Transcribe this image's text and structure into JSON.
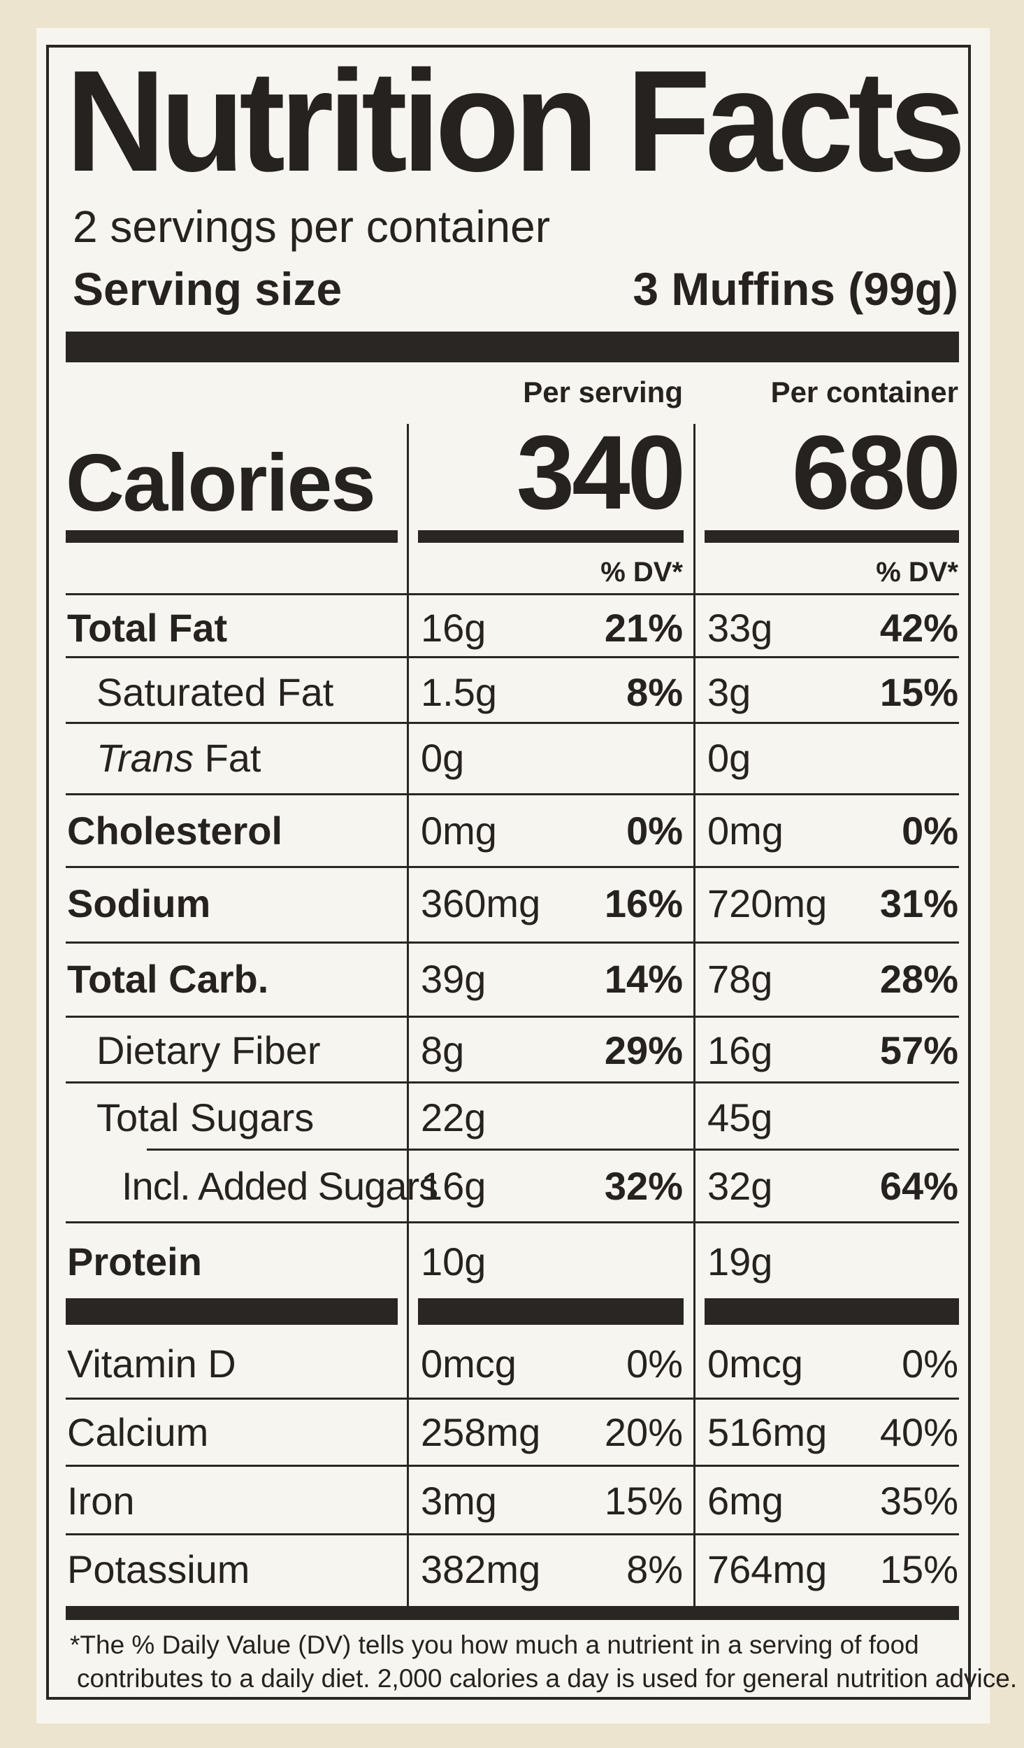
{
  "title": "Nutrition Facts",
  "servings_per_container": "2 servings per container",
  "serving_size_label": "Serving size",
  "serving_size_value": "3 Muffins (99g)",
  "columns": {
    "per_serving": "Per serving",
    "per_container": "Per container"
  },
  "calories": {
    "label": "Calories",
    "per_serving": "340",
    "per_container": "680"
  },
  "dv_header": "% DV*",
  "nutrients": [
    {
      "label": "Total Fat",
      "serving_amount": "16g",
      "serving_dv": "21%",
      "container_amount": "33g",
      "container_dv": "42%"
    },
    {
      "label": "Saturated Fat",
      "serving_amount": "1.5g",
      "serving_dv": "8%",
      "container_amount": "3g",
      "container_dv": "15%"
    },
    {
      "label_italic": "Trans",
      "label": "Fat",
      "serving_amount": "0g",
      "serving_dv": "",
      "container_amount": "0g",
      "container_dv": ""
    },
    {
      "label": "Cholesterol",
      "serving_amount": "0mg",
      "serving_dv": "0%",
      "container_amount": "0mg",
      "container_dv": "0%"
    },
    {
      "label": "Sodium",
      "serving_amount": "360mg",
      "serving_dv": "16%",
      "container_amount": "720mg",
      "container_dv": "31%"
    },
    {
      "label": "Total Carb.",
      "serving_amount": "39g",
      "serving_dv": "14%",
      "container_amount": "78g",
      "container_dv": "28%"
    },
    {
      "label": "Dietary Fiber",
      "serving_amount": "8g",
      "serving_dv": "29%",
      "container_amount": "16g",
      "container_dv": "57%"
    },
    {
      "label": "Total Sugars",
      "serving_amount": "22g",
      "serving_dv": "",
      "container_amount": "45g",
      "container_dv": ""
    },
    {
      "label": "Incl. Added Sugars",
      "serving_amount": "16g",
      "serving_dv": "32%",
      "container_amount": "32g",
      "container_dv": "64%"
    },
    {
      "label": "Protein",
      "serving_amount": "10g",
      "serving_dv": "",
      "container_amount": "19g",
      "container_dv": ""
    }
  ],
  "vitamins": [
    {
      "label": "Vitamin D",
      "serving_amount": "0mcg",
      "serving_dv": "0%",
      "container_amount": "0mcg",
      "container_dv": "0%"
    },
    {
      "label": "Calcium",
      "serving_amount": "258mg",
      "serving_dv": "20%",
      "container_amount": "516mg",
      "container_dv": "40%"
    },
    {
      "label": "Iron",
      "serving_amount": "3mg",
      "serving_dv": "15%",
      "container_amount": "6mg",
      "container_dv": "35%"
    },
    {
      "label": "Potassium",
      "serving_amount": "382mg",
      "serving_dv": "8%",
      "container_amount": "764mg",
      "container_dv": "15%"
    }
  ],
  "footnote": {
    "line1": "*The % Daily Value (DV) tells you how much a nutrient in a serving of food",
    "line2": "contributes to a daily diet. 2,000 calories a day is used for general nutrition advice."
  }
}
